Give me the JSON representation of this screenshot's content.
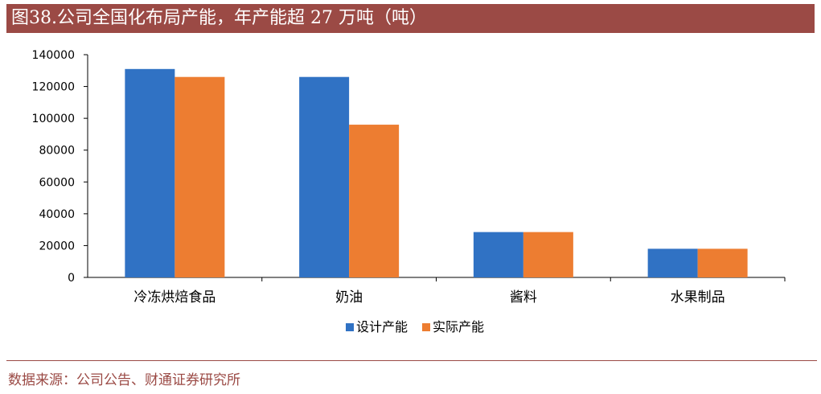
{
  "title": "图38.公司全国化布局产能，年产能超 27 万吨（吨）",
  "source": "数据来源：公司公告、财通证券研究所",
  "colors": {
    "title_bg": "#9b4a45",
    "series1": "#3072c4",
    "series2": "#ed7d31"
  },
  "chart_data": {
    "type": "bar",
    "categories": [
      "冷冻烘焙食品",
      "奶油",
      "酱料",
      "水果制品"
    ],
    "series": [
      {
        "name": "设计产能",
        "values": [
          131000,
          126000,
          28500,
          18000
        ]
      },
      {
        "name": "实际产能",
        "values": [
          126000,
          96000,
          28500,
          18000
        ]
      }
    ],
    "yticks": [
      "0",
      "20000",
      "40000",
      "60000",
      "80000",
      "100000",
      "120000",
      "140000"
    ],
    "ylim": [
      0,
      140000
    ],
    "legend_position": "bottom",
    "grid": false
  }
}
